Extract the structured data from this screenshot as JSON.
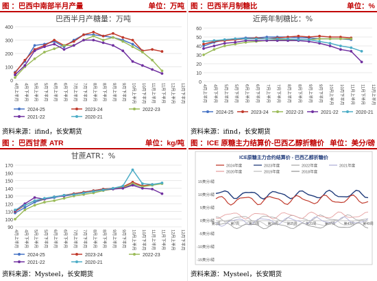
{
  "panels": [
    {
      "header_title": "图 ：巴西中南部半月产量",
      "header_unit": "单位：万吨",
      "source": "资料来源：ifind，长安期货"
    },
    {
      "header_title": "图 ：巴西半月制糖比",
      "header_unit": "单位：%",
      "source": "资料来源：ifind，长安期货"
    },
    {
      "header_title": "图 ：巴西甘蔗 ATR",
      "header_unit": "单位：kg/吨",
      "source": "资料来源：Mysteel，长安期货"
    },
    {
      "header_title": "图 ：ICE 原糖主力结算价-巴西乙醇折糖价",
      "header_unit": "单位：美分/磅",
      "source": "资料来源：Mysteel，长安期货"
    }
  ],
  "colors": {
    "accent": "#c00000"
  },
  "chart_data": [
    {
      "type": "line",
      "title": "巴西半月产糖量：万吨",
      "categories": [
        "4月上半月",
        "4月下半月",
        "5月上半月",
        "5月下半月",
        "6月上半月",
        "6月下半月",
        "7月上半月",
        "7月下半月",
        "8月上半月",
        "8月下半月",
        "9月上半月",
        "9月下半月",
        "10月上半月",
        "10月下半月",
        "11月上半月",
        "11月下半月",
        "12月上半月",
        "12月下半月"
      ],
      "ylim": [
        0,
        400
      ],
      "yticks": [
        0,
        100,
        200,
        300,
        400
      ],
      "series": [
        {
          "name": "2024-25",
          "color": "#4472c4",
          "values": [
            60,
            140,
            260,
            270,
            290,
            250,
            300,
            340,
            340,
            330,
            320,
            300,
            270,
            220,
            null,
            null,
            null,
            null
          ]
        },
        {
          "name": "2023-24",
          "color": "#c0392b",
          "values": [
            55,
            150,
            230,
            260,
            300,
            260,
            290,
            340,
            360,
            330,
            350,
            320,
            300,
            220,
            230,
            215,
            null,
            null
          ]
        },
        {
          "name": "2022-23",
          "color": "#9bbb59",
          "values": [
            20,
            100,
            160,
            210,
            235,
            260,
            260,
            300,
            330,
            300,
            320,
            290,
            250,
            210,
            150,
            70,
            null,
            null
          ]
        },
        {
          "name": "2021-22",
          "color": "#7030a0",
          "values": [
            40,
            110,
            220,
            250,
            270,
            230,
            260,
            300,
            300,
            280,
            260,
            220,
            140,
            110,
            80,
            50,
            null,
            null
          ]
        },
        {
          "name": "2020-21",
          "color": "#4bacc6",
          "values": [
            null,
            null,
            null,
            null,
            null,
            null,
            null,
            null,
            null,
            null,
            null,
            null,
            null,
            null,
            null,
            null,
            null,
            null
          ]
        }
      ]
    },
    {
      "type": "line",
      "title": "近两年制糖比：%",
      "categories": [
        "4月上半月",
        "4月下半月",
        "5月上半月",
        "5月下半月",
        "6月上半月",
        "6月下半月",
        "7月上半月",
        "7月下半月",
        "8月上半月",
        "8月下半月",
        "9月上半月",
        "9月下半月",
        "10月上半月",
        "10月下半月",
        "11月上半月",
        "11月下半月",
        "12月上半月"
      ],
      "ylim": [
        0,
        60
      ],
      "yticks": [
        0,
        10,
        20,
        30,
        40,
        50,
        60
      ],
      "series": [
        {
          "name": "2024-25",
          "color": "#4472c4",
          "values": [
            40,
            44,
            47,
            48,
            49,
            49,
            50,
            50,
            50,
            49,
            49,
            48,
            48,
            48,
            47,
            null,
            null
          ]
        },
        {
          "name": "2023-24",
          "color": "#c0392b",
          "values": [
            42,
            45,
            46,
            47,
            48,
            49,
            48,
            49,
            50,
            51,
            50,
            51,
            50,
            50,
            49,
            null,
            null
          ]
        },
        {
          "name": "2022-23",
          "color": "#9bbb59",
          "values": [
            30,
            36,
            40,
            42,
            44,
            45,
            46,
            47,
            47,
            47,
            47,
            48,
            48,
            48,
            48,
            null,
            null
          ]
        },
        {
          "name": "2021-22",
          "color": "#7030a0",
          "values": [
            37,
            40,
            43,
            44,
            46,
            46,
            46,
            46,
            46,
            46,
            45,
            43,
            40,
            36,
            34,
            22,
            null
          ]
        },
        {
          "name": "2020-21",
          "color": "#4bacc6",
          "values": [
            45,
            46,
            47,
            48,
            48,
            48,
            48,
            48,
            48,
            47,
            47,
            45,
            43,
            40,
            38,
            34,
            null
          ]
        }
      ]
    },
    {
      "type": "line",
      "title": "甘蔗ATR：%",
      "categories": [
        "4月上半月",
        "4月下半月",
        "5月上半月",
        "5月下半月",
        "6月上半月",
        "6月下半月",
        "7月上半月",
        "7月下半月",
        "8月上半月",
        "8月下半月",
        "9月上半月",
        "9月下半月",
        "10月上半月",
        "10月下半月",
        "11月上半月",
        "11月下半月",
        "12月上半月",
        "12月下半月"
      ],
      "ylim": [
        90,
        170
      ],
      "yticks": [
        90,
        100,
        110,
        120,
        130,
        140,
        150,
        160,
        170
      ],
      "series": [
        {
          "name": "2024-25",
          "color": "#4472c4",
          "values": [
            108,
            115,
            122,
            126,
            128,
            131,
            133,
            135,
            137,
            139,
            140,
            141,
            145,
            143,
            144,
            null,
            null,
            null
          ]
        },
        {
          "name": "2023-24",
          "color": "#c0392b",
          "values": [
            110,
            118,
            124,
            126,
            129,
            131,
            133,
            135,
            137,
            139,
            140,
            142,
            148,
            143,
            145,
            null,
            null,
            null
          ]
        },
        {
          "name": "2022-23",
          "color": "#9bbb59",
          "values": [
            100,
            112,
            118,
            122,
            124,
            127,
            130,
            132,
            134,
            137,
            139,
            141,
            146,
            142,
            144,
            146,
            null,
            null
          ]
        },
        {
          "name": "2021-22",
          "color": "#7030a0",
          "values": [
            111,
            120,
            128,
            126,
            129,
            130,
            132,
            134,
            136,
            138,
            139,
            140,
            144,
            140,
            139,
            133,
            null,
            null
          ]
        },
        {
          "name": "2020-21",
          "color": "#4bacc6",
          "values": [
            112,
            118,
            124,
            127,
            129,
            131,
            132,
            134,
            136,
            138,
            140,
            143,
            164,
            146,
            145,
            147,
            null,
            null
          ]
        }
      ]
    }
  ],
  "ice_chart": {
    "title": "ICE原糖主力合约结算价 - 巴西乙醇折糖价",
    "legend": [
      {
        "name": "2024年度",
        "color": "#c0392b"
      },
      {
        "name": "2023年度",
        "color": "#1f3a7a"
      },
      {
        "name": "2022年度",
        "color": "#aaaaaa"
      },
      {
        "name": "2021年度",
        "color": "#b0b0d8"
      },
      {
        "name": "2020年度",
        "color": "#e6a0a0"
      },
      {
        "name": "2019年度",
        "color": "#c0c0c0"
      },
      {
        "name": "2018年度",
        "color": "#999999"
      }
    ],
    "yticks": [
      "15美分/磅",
      "10美分/磅",
      "5美分/磅",
      "0美分/磅",
      "-5美分/磅",
      "-10美分/磅",
      "-15美分/磅"
    ],
    "xticks": [
      "第1周",
      "第7周",
      "第13周",
      "第19周",
      "第25周",
      "第31周",
      "第37周",
      "第43周",
      "第49周"
    ],
    "y_range": [
      -15,
      15
    ]
  }
}
